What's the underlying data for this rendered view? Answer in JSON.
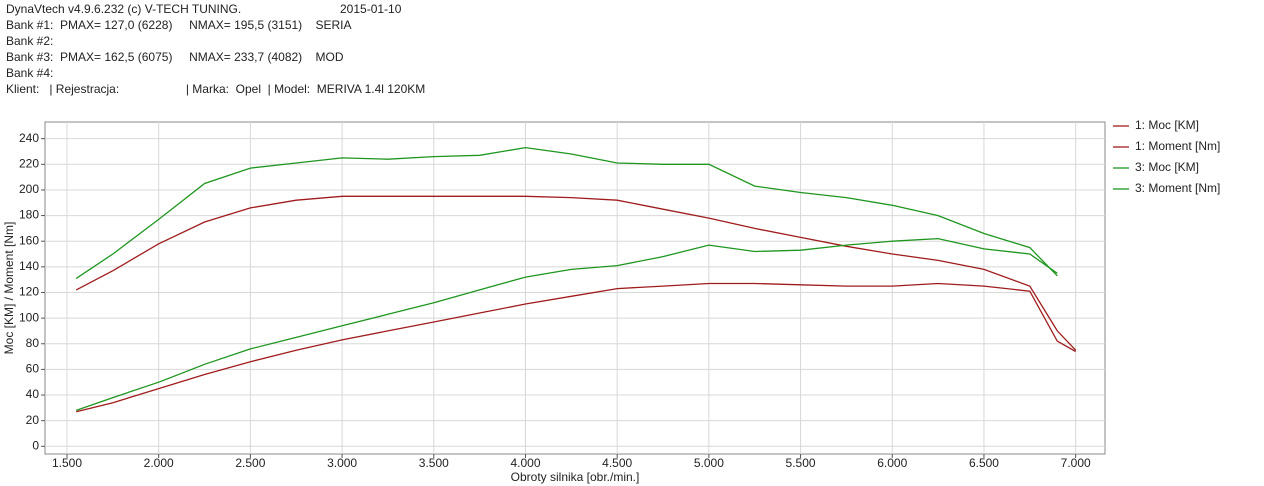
{
  "header": {
    "program": "DynaVtech v4.9.6.232 (c) V-TECH TUNING.",
    "date": "2015-01-10",
    "lines": [
      "Bank #1:  PMAX= 127,0 (6228)     NMAX= 195,5 (3151)    SERIA",
      "Bank #2:",
      "Bank #3:  PMAX= 162,5 (6075)     NMAX= 233,7 (4082)    MOD",
      "Bank #4:",
      "Klient:   | Rejestracja:                    | Marka:  Opel  | Model:  MERIVA 1.4l 120KM"
    ]
  },
  "chart_data": {
    "type": "line",
    "x_label": "Obroty silnika [obr./min.]",
    "y_label": "Moc [KM] / Moment [Nm]",
    "x": [
      1550,
      1750,
      2000,
      2250,
      2500,
      2750,
      3000,
      3250,
      3500,
      3750,
      4000,
      4250,
      4500,
      4750,
      5000,
      5250,
      5500,
      5750,
      6000,
      6250,
      6500,
      6750,
      6900,
      7000
    ],
    "series": [
      {
        "name": "1: Moc [KM]",
        "color": "#a01c1c",
        "values": [
          27,
          34,
          45,
          56,
          66,
          75,
          83,
          90,
          97,
          104,
          111,
          117,
          123,
          125,
          127,
          127,
          126,
          125,
          125,
          127,
          125,
          121,
          82,
          74
        ]
      },
      {
        "name": "1: Moment [Nm]",
        "color": "#a01c1c",
        "values": [
          122,
          137,
          158,
          175,
          186,
          192,
          195,
          195,
          195,
          195,
          195,
          194,
          192,
          185,
          178,
          170,
          163,
          156,
          150,
          145,
          138,
          125,
          90,
          75
        ]
      },
      {
        "name": "3: Moc [KM]",
        "color": "#1e961e",
        "values": [
          28,
          38,
          50,
          64,
          76,
          85,
          94,
          103,
          112,
          122,
          132,
          138,
          141,
          148,
          157,
          152,
          153,
          157,
          160,
          162,
          154,
          150,
          135,
          null
        ]
      },
      {
        "name": "3: Moment [Nm]",
        "color": "#1e961e",
        "values": [
          131,
          150,
          177,
          205,
          217,
          221,
          225,
          224,
          226,
          227,
          233,
          228,
          221,
          220,
          220,
          203,
          198,
          194,
          188,
          180,
          166,
          155,
          133,
          null
        ]
      }
    ],
    "xlim": [
      1380,
      7160
    ],
    "ylim": [
      -6,
      253
    ],
    "xticks": [
      {
        "value": 1500,
        "label": "1.500"
      },
      {
        "value": 2000,
        "label": "2.000"
      },
      {
        "value": 2500,
        "label": "2.500"
      },
      {
        "value": 3000,
        "label": "3.000"
      },
      {
        "value": 3500,
        "label": "3.500"
      },
      {
        "value": 4000,
        "label": "4.000"
      },
      {
        "value": 4500,
        "label": "4.500"
      },
      {
        "value": 5000,
        "label": "5.000"
      },
      {
        "value": 5500,
        "label": "5.500"
      },
      {
        "value": 6000,
        "label": "6.000"
      },
      {
        "value": 6500,
        "label": "6.500"
      },
      {
        "value": 7000,
        "label": "7.000"
      }
    ],
    "yticks": [
      0,
      20,
      40,
      60,
      80,
      100,
      120,
      140,
      160,
      180,
      200,
      220,
      240
    ],
    "grid": true,
    "legend": "right"
  }
}
